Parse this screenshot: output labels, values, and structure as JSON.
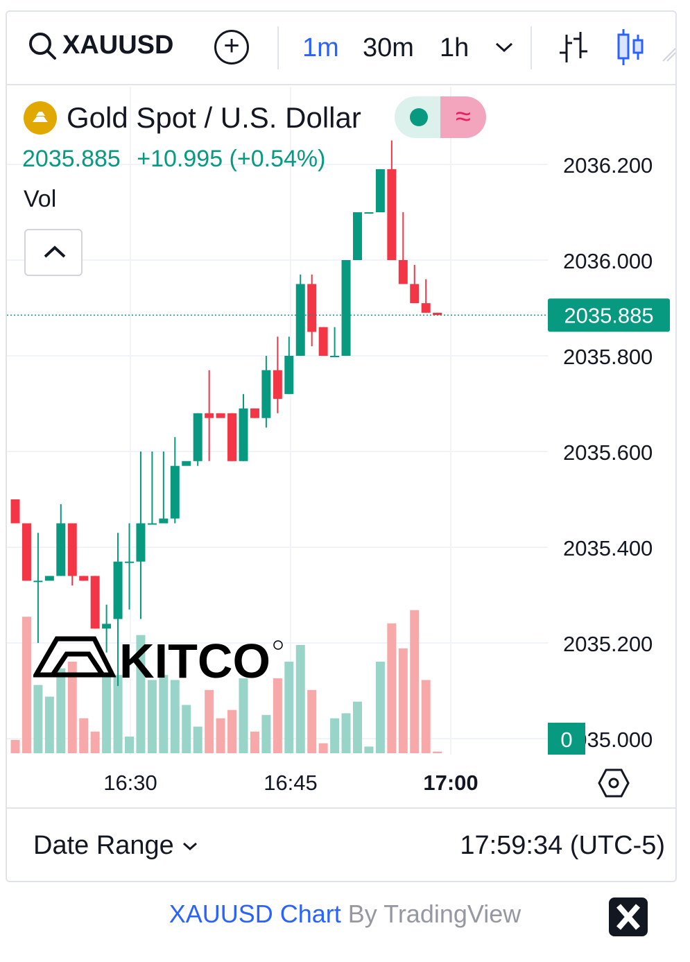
{
  "toolbar": {
    "symbol": "XAUUSD",
    "intervals": [
      "1m",
      "30m",
      "1h"
    ],
    "active_interval": "1m"
  },
  "legend": {
    "title": "Gold Spot / U.S. Dollar",
    "price": "2035.885",
    "change": "+10.995 (+0.54%)",
    "volume_label": "Vol"
  },
  "logo_text": "KITCO",
  "footer": {
    "date_range_label": "Date Range",
    "time": "17:59:34 (UTC-5)"
  },
  "credit": {
    "link_text": "XAUUSD Chart",
    "by_text": "By TradingView"
  },
  "colors": {
    "up": "#089981",
    "down": "#f23645",
    "accent": "#2962ff"
  },
  "chart_data": {
    "type": "candlestick",
    "y_ticks": [
      "2036.200",
      "2036.000",
      "2035.800",
      "2035.600",
      "2035.400",
      "2035.200",
      "2035.000"
    ],
    "x_ticks": [
      "16:30",
      "16:45",
      "17:00"
    ],
    "last_price_label": "2035.885",
    "volume_axis_label": "0",
    "candles": [
      {
        "o": 2035.5,
        "h": 2035.5,
        "l": 2035.45,
        "c": 2035.45,
        "v": 0.08
      },
      {
        "o": 2035.45,
        "h": 2035.45,
        "l": 2035.33,
        "c": 2035.33,
        "v": 0.82
      },
      {
        "o": 2035.33,
        "h": 2035.43,
        "l": 2035.2,
        "c": 2035.33,
        "v": 0.41
      },
      {
        "o": 2035.33,
        "h": 2035.33,
        "l": 2035.33,
        "c": 2035.34,
        "v": 0.34
      },
      {
        "o": 2035.34,
        "h": 2035.49,
        "l": 2035.34,
        "c": 2035.45,
        "v": 0.51
      },
      {
        "o": 2035.45,
        "h": 2035.45,
        "l": 2035.32,
        "c": 2035.34,
        "v": 0.55
      },
      {
        "o": 2035.34,
        "h": 2035.34,
        "l": 2035.33,
        "c": 2035.33,
        "v": 0.21
      },
      {
        "o": 2035.34,
        "h": 2035.34,
        "l": 2035.23,
        "c": 2035.23,
        "v": 0.13
      },
      {
        "o": 2035.23,
        "h": 2035.28,
        "l": 2035.18,
        "c": 2035.24,
        "v": 0.47
      },
      {
        "o": 2035.25,
        "h": 2035.43,
        "l": 2035.11,
        "c": 2035.37,
        "v": 0.47
      },
      {
        "o": 2035.37,
        "h": 2035.45,
        "l": 2035.27,
        "c": 2035.37,
        "v": 0.1
      },
      {
        "o": 2035.37,
        "h": 2035.6,
        "l": 2035.25,
        "c": 2035.45,
        "v": 0.71
      },
      {
        "o": 2035.45,
        "h": 2035.6,
        "l": 2035.45,
        "c": 2035.45,
        "v": 0.44
      },
      {
        "o": 2035.45,
        "h": 2035.6,
        "l": 2035.45,
        "c": 2035.46,
        "v": 0.47
      },
      {
        "o": 2035.46,
        "h": 2035.63,
        "l": 2035.45,
        "c": 2035.57,
        "v": 0.44
      },
      {
        "o": 2035.57,
        "h": 2035.57,
        "l": 2035.57,
        "c": 2035.58,
        "v": 0.29
      },
      {
        "o": 2035.58,
        "h": 2035.68,
        "l": 2035.57,
        "c": 2035.68,
        "v": 0.16
      },
      {
        "o": 2035.68,
        "h": 2035.77,
        "l": 2035.58,
        "c": 2035.67,
        "v": 0.38
      },
      {
        "o": 2035.68,
        "h": 2035.68,
        "l": 2035.68,
        "c": 2035.67,
        "v": 0.21
      },
      {
        "o": 2035.68,
        "h": 2035.68,
        "l": 2035.58,
        "c": 2035.58,
        "v": 0.26
      },
      {
        "o": 2035.58,
        "h": 2035.72,
        "l": 2035.58,
        "c": 2035.69,
        "v": 0.45
      },
      {
        "o": 2035.69,
        "h": 2035.69,
        "l": 2035.67,
        "c": 2035.67,
        "v": 0.13
      },
      {
        "o": 2035.67,
        "h": 2035.8,
        "l": 2035.65,
        "c": 2035.77,
        "v": 0.23
      },
      {
        "o": 2035.77,
        "h": 2035.84,
        "l": 2035.68,
        "c": 2035.71,
        "v": 0.45
      },
      {
        "o": 2035.72,
        "h": 2035.84,
        "l": 2035.72,
        "c": 2035.8,
        "v": 0.55
      },
      {
        "o": 2035.8,
        "h": 2035.97,
        "l": 2035.8,
        "c": 2035.95,
        "v": 0.65
      },
      {
        "o": 2035.95,
        "h": 2035.97,
        "l": 2035.82,
        "c": 2035.85,
        "v": 0.38
      },
      {
        "o": 2035.86,
        "h": 2035.86,
        "l": 2035.8,
        "c": 2035.8,
        "v": 0.06
      },
      {
        "o": 2035.8,
        "h": 2035.86,
        "l": 2035.8,
        "c": 2035.8,
        "v": 0.21
      },
      {
        "o": 2035.8,
        "h": 2036.0,
        "l": 2035.8,
        "c": 2036.0,
        "v": 0.24
      },
      {
        "o": 2036.0,
        "h": 2036.1,
        "l": 2036.0,
        "c": 2036.1,
        "v": 0.31
      },
      {
        "o": 2036.1,
        "h": 2036.1,
        "l": 2036.1,
        "c": 2036.1,
        "v": 0.04
      },
      {
        "o": 2036.1,
        "h": 2036.19,
        "l": 2036.1,
        "c": 2036.19,
        "v": 0.55
      },
      {
        "o": 2036.19,
        "h": 2036.25,
        "l": 2036.0,
        "c": 2036.0,
        "v": 0.78
      },
      {
        "o": 2036.0,
        "h": 2036.1,
        "l": 2035.95,
        "c": 2035.95,
        "v": 0.63
      },
      {
        "o": 2035.95,
        "h": 2035.99,
        "l": 2035.91,
        "c": 2035.91,
        "v": 0.86
      },
      {
        "o": 2035.91,
        "h": 2035.96,
        "l": 2035.89,
        "c": 2035.89,
        "v": 0.44
      },
      {
        "o": 2035.89,
        "h": 2035.89,
        "l": 2035.885,
        "c": 2035.885,
        "v": 0.01
      }
    ]
  }
}
